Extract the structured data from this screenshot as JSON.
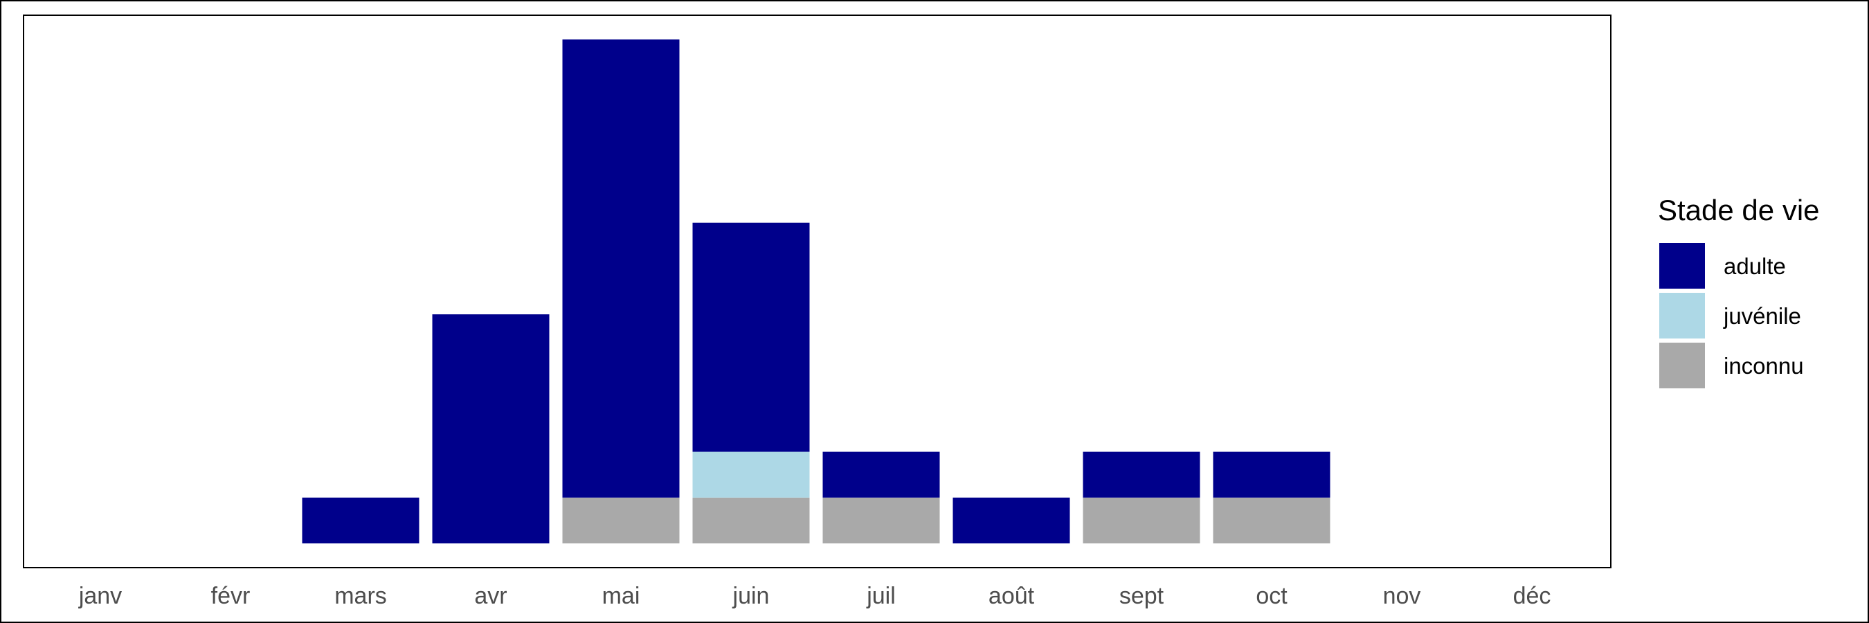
{
  "chart_data": {
    "type": "bar",
    "stacked": true,
    "categories": [
      "janv",
      "févr",
      "mars",
      "avr",
      "mai",
      "juin",
      "juil",
      "août",
      "sept",
      "oct",
      "nov",
      "déc"
    ],
    "series": [
      {
        "name": "inconnu",
        "color": "#A9A9A9",
        "values": [
          0,
          0,
          0,
          0,
          1,
          1,
          1,
          0,
          1,
          1,
          0,
          0
        ]
      },
      {
        "name": "juvénile",
        "color": "#ADD8E6",
        "values": [
          0,
          0,
          0,
          0,
          0,
          1,
          0,
          0,
          0,
          0,
          0,
          0
        ]
      },
      {
        "name": "adulte",
        "color": "#00008B",
        "values": [
          0,
          0,
          1,
          5,
          10,
          5,
          1,
          1,
          1,
          1,
          0,
          0
        ]
      }
    ],
    "ylim": [
      0,
      11.1
    ],
    "legend": {
      "title": "Stade de vie",
      "position": "right",
      "order": [
        "adulte",
        "juvénile",
        "inconnu"
      ]
    },
    "grid": false
  }
}
